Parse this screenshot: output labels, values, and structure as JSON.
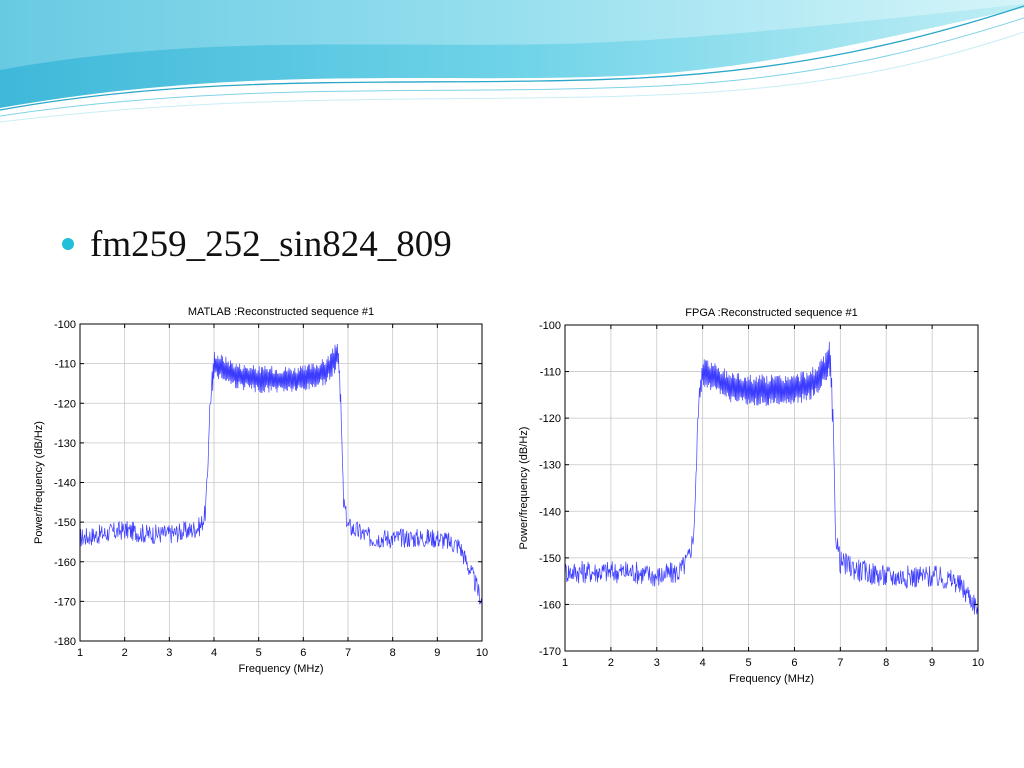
{
  "slide": {
    "bullet_text": "fm259_252_sin824_809",
    "accent_color": "#1fc0d8"
  },
  "chart_data": [
    {
      "type": "line",
      "title": "MATLAB :Reconstructed sequence #1",
      "xlabel": "Frequency (MHz)",
      "ylabel": "Power/frequency (dB/Hz)",
      "xlim": [
        1,
        10
      ],
      "ylim": [
        -180,
        -100
      ],
      "xticks": [
        1,
        2,
        3,
        4,
        5,
        6,
        7,
        8,
        9,
        10
      ],
      "yticks": [
        -100,
        -110,
        -120,
        -130,
        -140,
        -150,
        -160,
        -170,
        -180
      ],
      "grid": true,
      "series": [
        {
          "color": "#3c3cff",
          "x": [
            1.0,
            1.5,
            2.0,
            2.5,
            3.0,
            3.5,
            3.7,
            3.8,
            3.85,
            3.9,
            4.0,
            4.5,
            5.0,
            5.5,
            6.0,
            6.5,
            6.7,
            6.75,
            6.8,
            6.85,
            6.9,
            7.0,
            7.5,
            8.0,
            8.5,
            9.0,
            9.5,
            9.8,
            10.0
          ],
          "y": [
            -154,
            -153,
            -152,
            -153,
            -153,
            -152,
            -151,
            -148,
            -140,
            -122,
            -110,
            -113,
            -114,
            -114,
            -114,
            -112,
            -109,
            -107,
            -110,
            -125,
            -145,
            -151,
            -154,
            -154,
            -154,
            -154,
            -156,
            -164,
            -170
          ]
        }
      ]
    },
    {
      "type": "line",
      "title": "FPGA :Reconstructed sequence #1",
      "xlabel": "Frequency (MHz)",
      "ylabel": "Power/frequency (dB/Hz)",
      "xlim": [
        1,
        10
      ],
      "ylim": [
        -170,
        -100
      ],
      "xticks": [
        1,
        2,
        3,
        4,
        5,
        6,
        7,
        8,
        9,
        10
      ],
      "yticks": [
        -100,
        -110,
        -120,
        -130,
        -140,
        -150,
        -160,
        -170
      ],
      "grid": true,
      "series": [
        {
          "color": "#3c3cff",
          "x": [
            1.0,
            1.5,
            2.0,
            2.5,
            3.0,
            3.5,
            3.7,
            3.8,
            3.85,
            3.9,
            4.0,
            4.5,
            5.0,
            5.5,
            6.0,
            6.5,
            6.7,
            6.75,
            6.8,
            6.85,
            6.9,
            7.0,
            7.5,
            8.0,
            8.5,
            9.0,
            9.5,
            9.8,
            10.0
          ],
          "y": [
            -153,
            -153,
            -153,
            -153,
            -154,
            -153,
            -150,
            -145,
            -135,
            -118,
            -110,
            -113,
            -114,
            -114,
            -114,
            -112,
            -109,
            -106,
            -110,
            -125,
            -145,
            -151,
            -153,
            -154,
            -154,
            -154,
            -155,
            -158,
            -161
          ]
        }
      ]
    }
  ]
}
